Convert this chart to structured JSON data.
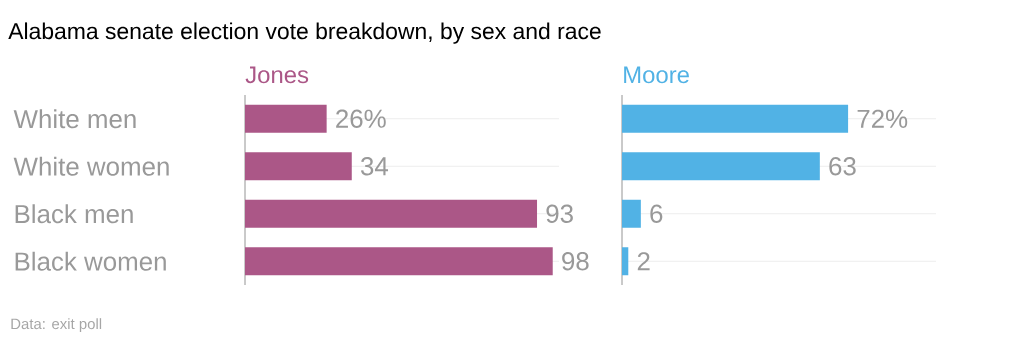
{
  "chart_data": [
    {
      "type": "bar",
      "orientation": "horizontal",
      "title": "Alabama senate election vote breakdown, by sex and race",
      "categories": [
        "White men",
        "White women",
        "Black men",
        "Black women"
      ],
      "series": [
        {
          "name": "Jones",
          "color": "#ab5787",
          "values": [
            26,
            34,
            93,
            98
          ],
          "value_labels": [
            "26%",
            "34",
            "93",
            "98"
          ]
        }
      ],
      "xlim": [
        0,
        100
      ],
      "grid": "y",
      "tick_labels": "y",
      "annotations": [
        "Data: exit poll"
      ]
    },
    {
      "type": "bar",
      "orientation": "horizontal",
      "categories": [
        null,
        null,
        null,
        null
      ],
      "series": [
        {
          "name": "Moore",
          "color": "#51b2e5",
          "values": [
            72,
            63,
            6,
            2
          ],
          "value_labels": [
            "72%",
            "63",
            "6",
            "2"
          ]
        }
      ],
      "xlim": [
        0,
        100
      ],
      "grid": "y",
      "tick_labels": false
    }
  ]
}
